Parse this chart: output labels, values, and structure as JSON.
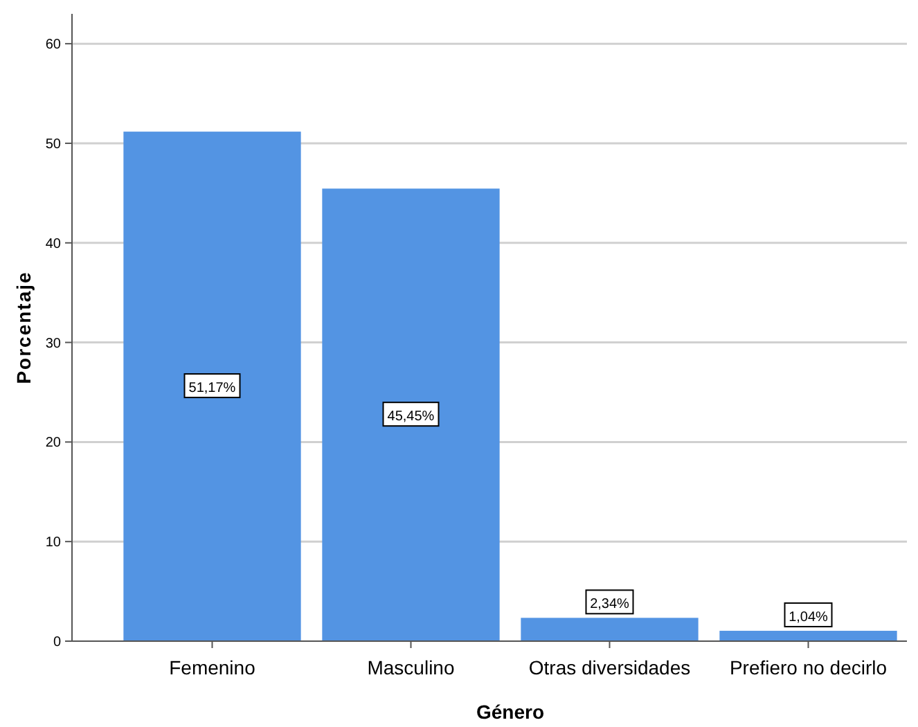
{
  "chart_data": {
    "type": "bar",
    "xlabel": "Género",
    "ylabel": "Porcentaje",
    "categories": [
      "Femenino",
      "Masculino",
      "Otras diversidades",
      "Prefiero no decirlo"
    ],
    "values": [
      51.17,
      45.45,
      2.34,
      1.04
    ],
    "value_labels": [
      "51,17%",
      "45,45%",
      "2,34%",
      "1,04%"
    ],
    "color": "#5394e3",
    "ylim": [
      0,
      63
    ],
    "yticks": [
      0,
      10,
      20,
      30,
      40,
      50,
      60
    ],
    "grid": "y"
  }
}
